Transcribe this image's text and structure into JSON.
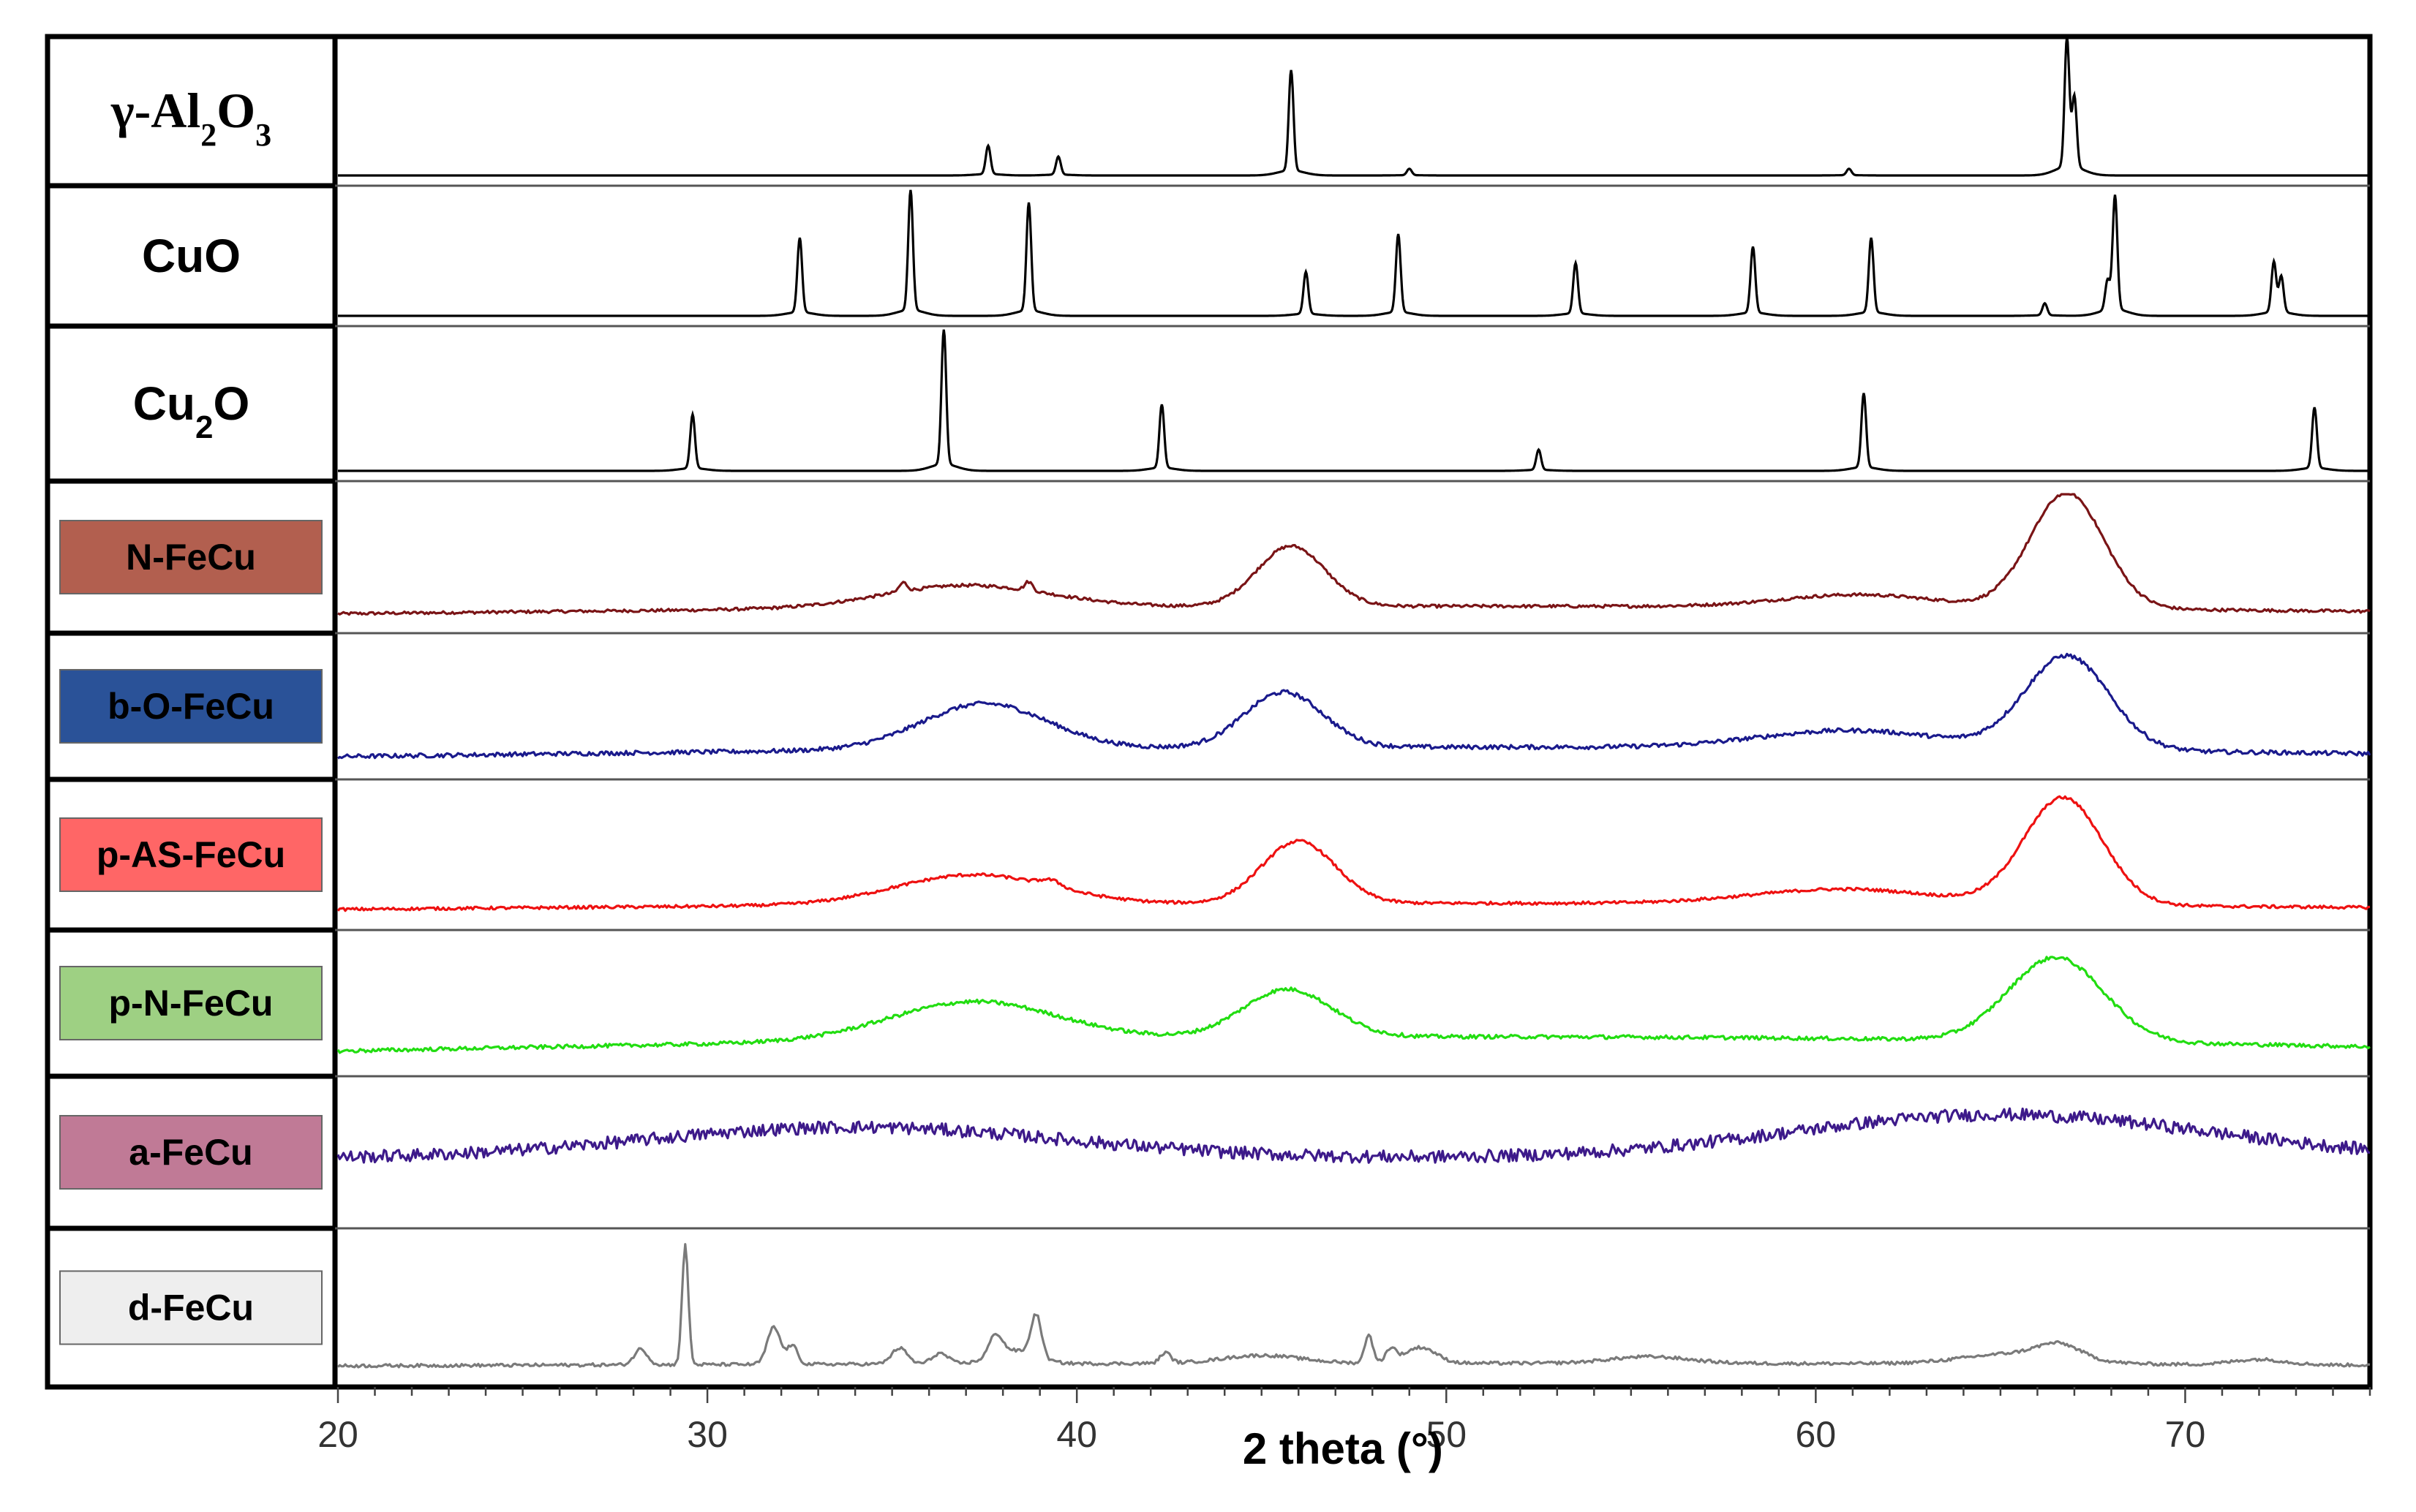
{
  "chart_data": {
    "type": "line",
    "title": "",
    "xlabel": "2 theta (°)",
    "ylabel": "",
    "xlim": [
      20,
      75
    ],
    "xticks": [
      {
        "value": 20,
        "label": "20"
      },
      {
        "value": 30,
        "label": "30"
      },
      {
        "value": 40,
        "label": "40"
      },
      {
        "value": 50,
        "label": "50"
      },
      {
        "value": 60,
        "label": "60"
      },
      {
        "value": 70,
        "label": "70"
      }
    ],
    "references": [
      {
        "id": "al2o3",
        "label": "γ-Al2O3",
        "label_parts": {
          "prefix": "γ-Al",
          "sub1": "2",
          "mid": "O",
          "sub2": "3"
        },
        "color": "#000000",
        "peaks": [
          {
            "pos": 37.6,
            "int": 0.22
          },
          {
            "pos": 39.5,
            "int": 0.14
          },
          {
            "pos": 45.8,
            "int": 0.78
          },
          {
            "pos": 49.0,
            "int": 0.05
          },
          {
            "pos": 60.9,
            "int": 0.05
          },
          {
            "pos": 66.8,
            "int": 1.0
          },
          {
            "pos": 67.0,
            "int": 0.55
          }
        ]
      },
      {
        "id": "cuo",
        "label": "CuO",
        "color": "#000000",
        "peaks": [
          {
            "pos": 32.5,
            "int": 0.62
          },
          {
            "pos": 35.5,
            "int": 1.0
          },
          {
            "pos": 38.7,
            "int": 0.9
          },
          {
            "pos": 46.2,
            "int": 0.35
          },
          {
            "pos": 48.7,
            "int": 0.65
          },
          {
            "pos": 53.5,
            "int": 0.42
          },
          {
            "pos": 58.3,
            "int": 0.55
          },
          {
            "pos": 61.5,
            "int": 0.62
          },
          {
            "pos": 66.2,
            "int": 0.1
          },
          {
            "pos": 67.9,
            "int": 0.25
          },
          {
            "pos": 68.1,
            "int": 0.95
          },
          {
            "pos": 72.4,
            "int": 0.42
          },
          {
            "pos": 72.6,
            "int": 0.3
          }
        ]
      },
      {
        "id": "cu2o",
        "label": "Cu2O",
        "label_parts": {
          "prefix": "Cu",
          "sub1": "2",
          "mid": "O"
        },
        "color": "#000000",
        "peaks": [
          {
            "pos": 29.6,
            "int": 0.4
          },
          {
            "pos": 36.4,
            "int": 1.0
          },
          {
            "pos": 42.3,
            "int": 0.47
          },
          {
            "pos": 52.5,
            "int": 0.15
          },
          {
            "pos": 61.3,
            "int": 0.55
          },
          {
            "pos": 73.5,
            "int": 0.45
          }
        ]
      }
    ],
    "series": [
      {
        "id": "n-fecu",
        "name": "N-FeCu",
        "color": "#7a1416",
        "label_bg": "#b25f4f",
        "label_fg": "#000000",
        "baseline": 0.05,
        "slope": 0.06,
        "noise": 0.012,
        "peaks": [
          {
            "pos": 37.0,
            "int": 0.18,
            "w": 3.2
          },
          {
            "pos": 35.3,
            "int": 0.07,
            "w": 0.15
          },
          {
            "pos": 38.7,
            "int": 0.07,
            "w": 0.15
          },
          {
            "pos": 45.8,
            "int": 0.48,
            "w": 1.3
          },
          {
            "pos": 61.2,
            "int": 0.1,
            "w": 3.0
          },
          {
            "pos": 66.8,
            "int": 0.92,
            "w": 1.4
          }
        ]
      },
      {
        "id": "b-o-fecu",
        "name": "b-O-FeCu",
        "color": "#1a1a8c",
        "label_bg": "#2a5298",
        "label_fg": "#000000",
        "baseline": 0.08,
        "slope": 0.08,
        "noise": 0.018,
        "peaks": [
          {
            "pos": 37.5,
            "int": 0.38,
            "w": 2.4
          },
          {
            "pos": 45.6,
            "int": 0.46,
            "w": 1.5
          },
          {
            "pos": 61.0,
            "int": 0.15,
            "w": 3.5
          },
          {
            "pos": 66.8,
            "int": 0.78,
            "w": 1.6
          }
        ]
      },
      {
        "id": "p-as-fecu",
        "name": "p-AS-FeCu",
        "color": "#ee1111",
        "label_bg": "#ff6666",
        "label_fg": "#000000",
        "baseline": 0.06,
        "slope": 0.05,
        "noise": 0.012,
        "peaks": [
          {
            "pos": 37.2,
            "int": 0.24,
            "w": 3.0
          },
          {
            "pos": 39.3,
            "int": 0.05,
            "w": 0.4
          },
          {
            "pos": 46.0,
            "int": 0.5,
            "w": 1.4
          },
          {
            "pos": 60.8,
            "int": 0.12,
            "w": 3.5
          },
          {
            "pos": 66.7,
            "int": 0.86,
            "w": 1.5
          }
        ]
      },
      {
        "id": "p-n-fecu",
        "name": "p-N-FeCu",
        "color": "#22dd11",
        "label_bg": "#9ed083",
        "label_fg": "#000000",
        "baseline": 0.1,
        "slope": 0.12,
        "noise": 0.016,
        "peaks": [
          {
            "pos": 37.2,
            "int": 0.32,
            "w": 3.2
          },
          {
            "pos": 45.7,
            "int": 0.4,
            "w": 1.7
          },
          {
            "pos": 66.5,
            "int": 0.7,
            "w": 1.8
          }
        ]
      },
      {
        "id": "a-fecu",
        "name": "a-FeCu",
        "color": "#3d1a8a",
        "label_bg": "#c07a96",
        "label_fg": "#000000",
        "baseline": 0.45,
        "slope": 0.0,
        "noise": 0.05,
        "peaks": [
          {
            "pos": 34.0,
            "int": 0.25,
            "w": 8.0
          },
          {
            "pos": 65.0,
            "int": 0.35,
            "w": 8.0
          }
        ]
      },
      {
        "id": "d-fecu",
        "name": "d-FeCu",
        "color": "#7a7a7a",
        "label_bg": "#eeeeee",
        "label_fg": "#000000",
        "baseline": 0.06,
        "slope": 0.02,
        "noise": 0.012,
        "peaks": [
          {
            "pos": 28.2,
            "int": 0.12,
            "w": 0.25
          },
          {
            "pos": 29.4,
            "int": 0.9,
            "w": 0.12
          },
          {
            "pos": 31.8,
            "int": 0.28,
            "w": 0.25
          },
          {
            "pos": 32.3,
            "int": 0.14,
            "w": 0.2
          },
          {
            "pos": 35.2,
            "int": 0.12,
            "w": 0.3
          },
          {
            "pos": 36.3,
            "int": 0.08,
            "w": 0.3
          },
          {
            "pos": 37.8,
            "int": 0.16,
            "w": 0.25
          },
          {
            "pos": 38.9,
            "int": 0.32,
            "w": 0.2
          },
          {
            "pos": 38.3,
            "int": 0.1,
            "w": 0.8
          },
          {
            "pos": 42.4,
            "int": 0.08,
            "w": 0.2
          },
          {
            "pos": 45.0,
            "int": 0.06,
            "w": 1.5
          },
          {
            "pos": 47.9,
            "int": 0.22,
            "w": 0.15
          },
          {
            "pos": 48.5,
            "int": 0.1,
            "w": 0.2
          },
          {
            "pos": 49.3,
            "int": 0.12,
            "w": 0.6
          },
          {
            "pos": 55.5,
            "int": 0.05,
            "w": 1.5
          },
          {
            "pos": 65.5,
            "int": 0.08,
            "w": 2.0
          },
          {
            "pos": 66.6,
            "int": 0.1,
            "w": 0.8
          },
          {
            "pos": 72.0,
            "int": 0.04,
            "w": 1.0
          }
        ]
      }
    ],
    "grid": false
  }
}
